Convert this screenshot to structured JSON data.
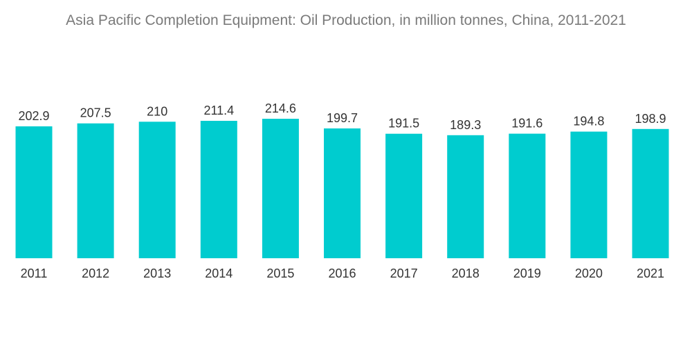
{
  "chart_data": {
    "type": "bar",
    "title": "Asia Pacific Completion Equipment: Oil Production, in million tonnes, China, 2011-2021",
    "categories": [
      "2011",
      "2012",
      "2013",
      "2014",
      "2015",
      "2016",
      "2017",
      "2018",
      "2019",
      "2020",
      "2021"
    ],
    "series": [
      {
        "values": [
          202.9,
          207.5,
          210,
          211.4,
          214.6,
          199.7,
          191.5,
          189.3,
          191.6,
          194.8,
          198.9
        ],
        "labels": [
          "202.9",
          "207.5",
          "210",
          "211.4",
          "214.6",
          "199.7",
          "191.5",
          "189.3",
          "191.6",
          "194.8",
          "198.9"
        ],
        "color": "#00cccf"
      }
    ],
    "xlabel": "",
    "ylabel": "",
    "ylim": [
      0,
      214.6
    ],
    "grid": false,
    "legend": "none"
  }
}
